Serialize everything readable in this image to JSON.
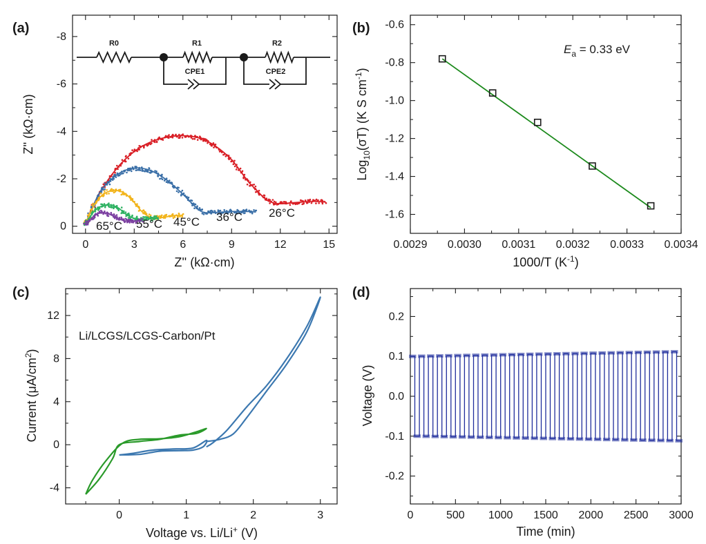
{
  "figure": {
    "colors": {
      "axis": "#1a1a1a",
      "red": "#d91f26",
      "blue": "#3a6fa7",
      "orange": "#f2b41c",
      "green": "#2fb263",
      "purple": "#7b3fa0",
      "fitgreen": "#1c8a1c",
      "cvgreen": "#2a9a2a",
      "cvblue": "#3c78b0",
      "navy": "#1f2d9c"
    }
  },
  "chart_data": [
    {
      "id": "a",
      "type": "scatter",
      "panel_label": "(a)",
      "xlabel": "Z'' (kΩ·cm)",
      "ylabel": "Z'' (kΩ·cm)",
      "xlim": [
        -0.8,
        15.5
      ],
      "ylim": [
        0.3,
        -8.9
      ],
      "xticks": [
        0,
        3,
        6,
        9,
        12,
        15
      ],
      "xtick_labels": [
        "0",
        "3",
        "6",
        "9",
        "12",
        "15"
      ],
      "yticks": [
        0,
        -2,
        -4,
        -6,
        -8
      ],
      "ytick_labels": [
        "0",
        "-2",
        "-4",
        "-6",
        "-8"
      ],
      "circuit": {
        "labels": [
          "R0",
          "R1",
          "CPE1",
          "R2",
          "CPE2"
        ]
      },
      "series": [
        {
          "name": "26°C",
          "color": "red",
          "label": "26°C",
          "x": [
            0,
            0.4,
            1,
            2,
            3,
            4,
            5,
            6,
            7,
            8,
            9,
            10,
            10.5,
            11,
            11.5,
            12,
            13,
            14,
            14.8
          ],
          "y": [
            -0.1,
            -0.75,
            -1.55,
            -2.5,
            -3.15,
            -3.55,
            -3.75,
            -3.82,
            -3.72,
            -3.38,
            -2.8,
            -1.9,
            -1.55,
            -1.2,
            -1.0,
            -0.95,
            -1.0,
            -1.05,
            -1.02
          ]
        },
        {
          "name": "36°C",
          "color": "blue",
          "label": "36°C",
          "x": [
            0,
            0.5,
            1,
            2,
            3,
            4,
            5,
            6,
            6.8,
            7.3,
            8,
            9,
            10,
            10.5
          ],
          "y": [
            -0.1,
            -0.9,
            -1.55,
            -2.2,
            -2.45,
            -2.35,
            -1.95,
            -1.35,
            -0.8,
            -0.58,
            -0.58,
            -0.62,
            -0.62,
            -0.6
          ]
        },
        {
          "name": "45°C",
          "color": "orange",
          "label": "45°C",
          "x": [
            0,
            0.5,
            1,
            1.5,
            2,
            2.5,
            3,
            3.5,
            4,
            4.5,
            5,
            5.5,
            6
          ],
          "y": [
            -0.1,
            -0.85,
            -1.3,
            -1.48,
            -1.5,
            -1.35,
            -1.0,
            -0.6,
            -0.38,
            -0.35,
            -0.4,
            -0.45,
            -0.45
          ]
        },
        {
          "name": "55°C",
          "color": "green",
          "label": "55°C",
          "x": [
            0,
            0.5,
            1,
            1.5,
            2,
            2.5,
            3,
            3.5,
            4,
            4.5
          ],
          "y": [
            -0.1,
            -0.6,
            -0.85,
            -0.9,
            -0.78,
            -0.5,
            -0.33,
            -0.3,
            -0.32,
            -0.35
          ]
        },
        {
          "name": "65°C",
          "color": "purple",
          "label": "65°C",
          "x": [
            0,
            0.5,
            1,
            1.5,
            2,
            2.5,
            3,
            3.5
          ],
          "y": [
            -0.05,
            -0.42,
            -0.58,
            -0.5,
            -0.32,
            -0.22,
            -0.22,
            -0.25
          ]
        }
      ]
    },
    {
      "id": "b",
      "type": "scatter",
      "panel_label": "(b)",
      "xlabel": "1000/T (K",
      "xlabel_sup": "-1",
      "xlabel_end": ")",
      "ylabel": "Log",
      "ylabel_sub": "10",
      "ylabel_mid": "(σT) (K S cm",
      "ylabel_sup": "-1",
      "ylabel_end": ")",
      "xlim": [
        0.0029,
        0.0034
      ],
      "ylim": [
        -1.7,
        -0.55
      ],
      "xticks": [
        0.0029,
        0.003,
        0.0031,
        0.0032,
        0.0033,
        0.0034
      ],
      "xtick_labels": [
        "0.0029",
        "0.0030",
        "0.0031",
        "0.0032",
        "0.0033",
        "0.0034"
      ],
      "yticks": [
        -1.6,
        -1.4,
        -1.2,
        -1.0,
        -0.8,
        -0.6
      ],
      "ytick_labels": [
        "-1.6",
        "-1.4",
        "-1.2",
        "-1.0",
        "-0.8",
        "-0.6"
      ],
      "points": {
        "x": [
          0.002959,
          0.003052,
          0.003135,
          0.003236,
          0.003344
        ],
        "y": [
          -0.78,
          -0.96,
          -1.115,
          -1.345,
          -1.555
        ]
      },
      "fit": {
        "x": [
          0.002959,
          0.003344
        ],
        "y": [
          -0.78,
          -1.565
        ]
      },
      "annotation": {
        "text_E": "E",
        "text_sub": "a",
        "text_rest": " = 0.33 eV"
      }
    },
    {
      "id": "c",
      "type": "line",
      "panel_label": "(c)",
      "xlabel": "Voltage vs. Li/Li",
      "xlabel_sup": "+",
      "xlabel_end": " (V)",
      "ylabel": "Current (μA/cm",
      "ylabel_sup": "2",
      "ylabel_end": ")",
      "xlim": [
        -0.8,
        3.25
      ],
      "ylim": [
        -5.5,
        14.5
      ],
      "xticks": [
        0,
        1,
        2,
        3
      ],
      "xtick_labels": [
        "0",
        "1",
        "2",
        "3"
      ],
      "yticks": [
        -4,
        0,
        4,
        8,
        12
      ],
      "ytick_labels": [
        "-4",
        "0",
        "4",
        "8",
        "12"
      ],
      "annotation": "Li/LCGS/LCGS-Carbon/Pt",
      "series": [
        {
          "name": "green-loop",
          "color": "cvgreen",
          "x": [
            -0.5,
            -0.3,
            -0.1,
            0.0,
            0.3,
            0.6,
            0.9,
            1.15,
            1.3,
            1.15,
            0.9,
            0.6,
            0.3,
            0.05,
            -0.2,
            -0.4,
            -0.5
          ],
          "y": [
            -4.6,
            -3.2,
            -1.3,
            0.0,
            0.3,
            0.5,
            0.9,
            1.05,
            1.5,
            1.2,
            0.75,
            0.55,
            0.5,
            0.15,
            -1.5,
            -3.3,
            -4.6
          ]
        },
        {
          "name": "blue-loop-low",
          "color": "cvblue",
          "x": [
            0.0,
            0.3,
            0.6,
            0.9,
            1.1,
            1.25,
            1.3,
            1.1,
            0.8,
            0.5,
            0.2,
            0.0
          ],
          "y": [
            -0.95,
            -0.9,
            -0.6,
            -0.55,
            -0.5,
            -0.2,
            0.4,
            -0.3,
            -0.4,
            -0.5,
            -0.8,
            -0.95
          ]
        },
        {
          "name": "blue-loop-high",
          "color": "cvblue",
          "x": [
            1.3,
            1.5,
            1.7,
            1.9,
            2.2,
            2.5,
            2.8,
            3.0,
            2.8,
            2.5,
            2.2,
            1.9,
            1.6,
            1.4,
            1.3
          ],
          "y": [
            0.3,
            0.5,
            1.0,
            2.5,
            5.0,
            7.5,
            10.5,
            13.7,
            11.0,
            8.0,
            5.5,
            3.5,
            1.3,
            0.2,
            -0.2
          ]
        }
      ]
    },
    {
      "id": "d",
      "type": "line",
      "panel_label": "(d)",
      "xlabel": "Time (min)",
      "ylabel": "Voltage (V)",
      "xlim": [
        0,
        3000
      ],
      "ylim": [
        -0.27,
        0.27
      ],
      "xticks": [
        0,
        500,
        1000,
        1500,
        2000,
        2500,
        3000
      ],
      "xtick_labels": [
        "0",
        "500",
        "1000",
        "1500",
        "2000",
        "2500",
        "3000"
      ],
      "yticks": [
        -0.2,
        -0.1,
        0.0,
        0.1,
        0.2
      ],
      "ytick_labels": [
        "-0.2",
        "-0.1",
        "0.0",
        "0.1",
        "0.2"
      ],
      "square_wave": {
        "period_min": 100,
        "amplitude_start": 0.1,
        "amplitude_end": 0.112,
        "t_start": 0,
        "t_end": 3000
      }
    }
  ]
}
